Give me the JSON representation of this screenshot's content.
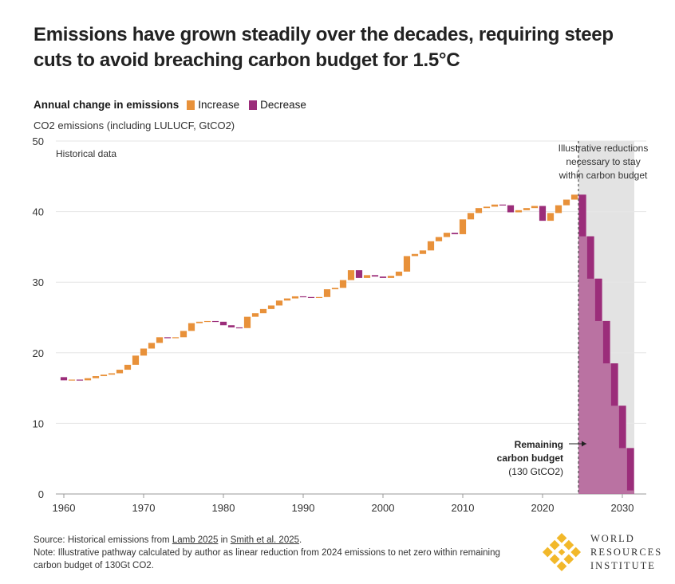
{
  "title": "Emissions have grown steadily over the decades, requiring steep cuts to avoid breaching carbon budget for 1.5°C",
  "legend": {
    "title": "Annual change in emissions",
    "increase": "Increase",
    "decrease": "Decrease"
  },
  "colors": {
    "increase": "#e8913a",
    "decrease": "#9b2d7a",
    "shade": "#e3e3e3",
    "budget": "#b5659a"
  },
  "source": {
    "prefix": "Source: Historical emissions from ",
    "link1": "Lamb 2025",
    "mid": " in ",
    "link2": "Smith et al. 2025",
    "suffix": ".",
    "note": "Note: Illustrative pathway calculated by author as linear reduction from 2024 emissions to net zero within remaining carbon budget of 130Gt CO2."
  },
  "logo": {
    "line1": "WORLD",
    "line2": "RESOURCES",
    "line3": "INSTITUTE"
  },
  "chart_data": {
    "type": "waterfall",
    "ylabel": "CO2 emissions (including  LULUCF, GtCO2)",
    "ylim": [
      0,
      50
    ],
    "yticks": [
      0,
      10,
      20,
      30,
      40,
      50
    ],
    "xlim": [
      1959,
      2033
    ],
    "xticks": [
      1960,
      1970,
      1980,
      1990,
      2000,
      2010,
      2020,
      2030
    ],
    "annotations": {
      "historical": "Historical data",
      "illustrative": [
        "Illustrative reductions",
        "necessary to stay",
        "within carbon budget"
      ],
      "budget": [
        "Remaining",
        "carbon budget",
        "(130 GtCO2)"
      ]
    },
    "historical_years": [
      1960,
      1961,
      1962,
      1963,
      1964,
      1965,
      1966,
      1967,
      1968,
      1969,
      1970,
      1971,
      1972,
      1973,
      1974,
      1975,
      1976,
      1977,
      1978,
      1979,
      1980,
      1981,
      1982,
      1983,
      1984,
      1985,
      1986,
      1987,
      1988,
      1989,
      1990,
      1991,
      1992,
      1993,
      1994,
      1995,
      1996,
      1997,
      1998,
      1999,
      2000,
      2001,
      2002,
      2003,
      2004,
      2005,
      2006,
      2007,
      2008,
      2009,
      2010,
      2011,
      2012,
      2013,
      2014,
      2015,
      2016,
      2017,
      2018,
      2019,
      2020,
      2021,
      2022,
      2023,
      2024
    ],
    "historical_emissions": [
      16.1,
      16.2,
      16.1,
      16.4,
      16.7,
      16.9,
      17.1,
      17.6,
      18.3,
      19.6,
      20.6,
      21.4,
      22.2,
      22.1,
      22.2,
      23.1,
      24.2,
      24.4,
      24.5,
      24.4,
      23.9,
      23.6,
      23.5,
      25.1,
      25.6,
      26.2,
      26.7,
      27.4,
      27.7,
      28.0,
      27.9,
      27.8,
      27.9,
      29.0,
      29.2,
      30.3,
      31.7,
      30.6,
      31.0,
      30.8,
      30.6,
      30.9,
      31.5,
      33.7,
      34.0,
      34.5,
      35.8,
      36.4,
      37.0,
      36.8,
      38.9,
      39.8,
      40.5,
      40.7,
      41.0,
      40.9,
      39.9,
      40.2,
      40.5,
      40.8,
      38.7,
      39.8,
      40.9,
      41.7,
      42.4
    ],
    "pathway_years": [
      2025,
      2026,
      2027,
      2028,
      2029,
      2030,
      2031
    ],
    "pathway_emissions": [
      36.5,
      30.5,
      24.5,
      18.5,
      12.5,
      6.5,
      0.5
    ]
  }
}
